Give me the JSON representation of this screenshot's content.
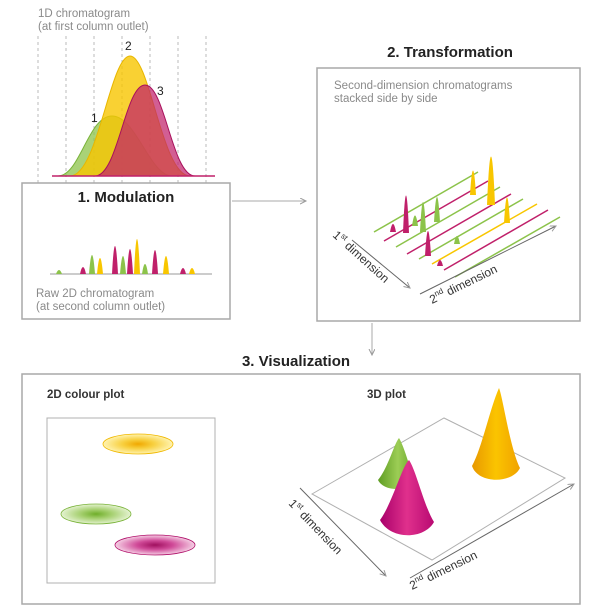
{
  "colors": {
    "green": "#8cc34a",
    "yellow": "#f8c600",
    "magenta": "#b8207a",
    "red": "#d6305a",
    "gray_box": "#a9a9a9",
    "text_gray": "#8a8a8a",
    "title": "#222222"
  },
  "top": {
    "caption_line1": "1D chromatogram",
    "caption_line2": "(at first column outlet)",
    "peak_labels": [
      "1",
      "2",
      "3"
    ]
  },
  "modulation": {
    "title": "1. Modulation",
    "caption_line1": "Raw 2D chromatogram",
    "caption_line2": "(at second column outlet)"
  },
  "transformation": {
    "title": "2. Transformation",
    "caption_line1": "Second-dimension chromatograms",
    "caption_line2": "stacked side by side",
    "axis_1": {
      "prefix": "1",
      "sup": "st",
      "rest": " dimension"
    },
    "axis_2": {
      "prefix": "2",
      "sup": "nd",
      "rest": " dimension"
    }
  },
  "visualization": {
    "title": "3. Visualization",
    "colour_plot_label": "2D colour plot",
    "plot3d_label": "3D plot",
    "axis_1": {
      "prefix": "1",
      "sup": "st",
      "rest": " dimension"
    },
    "axis_2": {
      "prefix": "2",
      "sup": "nd",
      "rest": " dimension"
    }
  }
}
